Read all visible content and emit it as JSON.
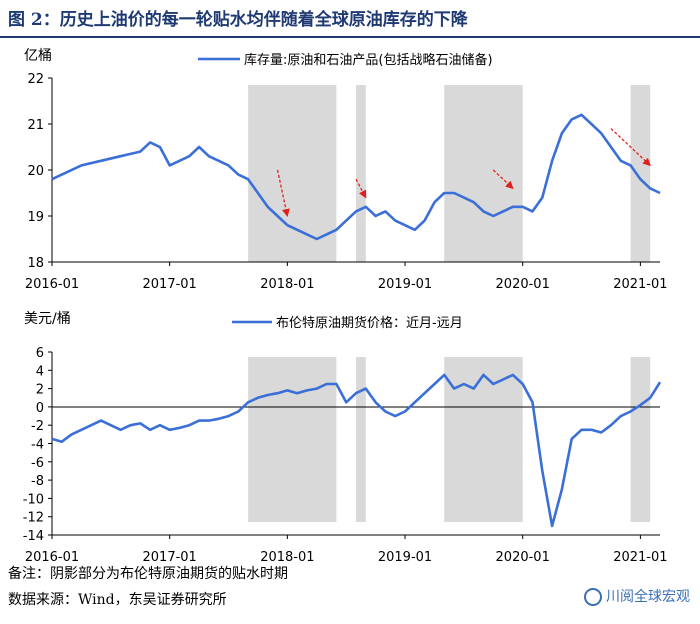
{
  "figure": {
    "title": "图 2：历史上油价的每一轮贴水均伴随着全球原油库存的下降",
    "note": "备注：阴影部分为布伦特原油期货的贴水时期",
    "source": "数据来源：Wind，东吴证券研究所",
    "watermark": "川阅全球宏观"
  },
  "colors": {
    "line": "#3a6fd8",
    "shade": "#d9d9d9",
    "arrow": "#e0201c",
    "title": "#1f3a73"
  },
  "chart_data": [
    {
      "type": "line",
      "ylabel": "亿桶",
      "ylim": [
        18,
        22
      ],
      "yticks": [
        "22",
        "21",
        "20",
        "19",
        "18"
      ],
      "xlim": [
        "2016-01",
        "2021-03"
      ],
      "xticks": [
        "2016-01",
        "2017-01",
        "2018-01",
        "2019-01",
        "2020-01",
        "2021-01"
      ],
      "legend": "库存量:原油和石油产品(包括战略石油储备)",
      "shaded_periods": [
        [
          "2017-09",
          "2018-06"
        ],
        [
          "2018-08",
          "2018-09"
        ],
        [
          "2019-05",
          "2020-01"
        ],
        [
          "2020-12",
          "2021-02"
        ]
      ],
      "annotations": [
        {
          "type": "arrow",
          "from": [
            "2017-12",
            "20.0"
          ],
          "to": [
            "2018-01",
            "19.0"
          ]
        },
        {
          "type": "arrow",
          "from": [
            "2018-08",
            "19.8"
          ],
          "to": [
            "2018-09",
            "19.4"
          ]
        },
        {
          "type": "arrow",
          "from": [
            "2019-10",
            "20.0"
          ],
          "to": [
            "2019-12",
            "19.6"
          ]
        },
        {
          "type": "arrow",
          "from": [
            "2020-10",
            "20.9"
          ],
          "to": [
            "2021-02",
            "20.1"
          ]
        }
      ],
      "series": [
        {
          "points": [
            [
              "2016-01",
              19.8
            ],
            [
              "2016-02",
              19.9
            ],
            [
              "2016-04",
              20.1
            ],
            [
              "2016-06",
              20.2
            ],
            [
              "2016-08",
              20.3
            ],
            [
              "2016-10",
              20.4
            ],
            [
              "2016-11",
              20.6
            ],
            [
              "2016-12",
              20.5
            ],
            [
              "2017-01",
              20.1
            ],
            [
              "2017-02",
              20.2
            ],
            [
              "2017-03",
              20.3
            ],
            [
              "2017-04",
              20.5
            ],
            [
              "2017-05",
              20.3
            ],
            [
              "2017-06",
              20.2
            ],
            [
              "2017-07",
              20.1
            ],
            [
              "2017-08",
              19.9
            ],
            [
              "2017-09",
              19.8
            ],
            [
              "2017-10",
              19.5
            ],
            [
              "2017-11",
              19.2
            ],
            [
              "2017-12",
              19.0
            ],
            [
              "2018-01",
              18.8
            ],
            [
              "2018-02",
              18.7
            ],
            [
              "2018-03",
              18.6
            ],
            [
              "2018-04",
              18.5
            ],
            [
              "2018-05",
              18.6
            ],
            [
              "2018-06",
              18.7
            ],
            [
              "2018-07",
              18.9
            ],
            [
              "2018-08",
              19.1
            ],
            [
              "2018-09",
              19.2
            ],
            [
              "2018-10",
              19.0
            ],
            [
              "2018-11",
              19.1
            ],
            [
              "2018-12",
              18.9
            ],
            [
              "2019-01",
              18.8
            ],
            [
              "2019-02",
              18.7
            ],
            [
              "2019-03",
              18.9
            ],
            [
              "2019-04",
              19.3
            ],
            [
              "2019-05",
              19.5
            ],
            [
              "2019-06",
              19.5
            ],
            [
              "2019-07",
              19.4
            ],
            [
              "2019-08",
              19.3
            ],
            [
              "2019-09",
              19.1
            ],
            [
              "2019-10",
              19.0
            ],
            [
              "2019-11",
              19.1
            ],
            [
              "2019-12",
              19.2
            ],
            [
              "2020-01",
              19.2
            ],
            [
              "2020-02",
              19.1
            ],
            [
              "2020-03",
              19.4
            ],
            [
              "2020-04",
              20.2
            ],
            [
              "2020-05",
              20.8
            ],
            [
              "2020-06",
              21.1
            ],
            [
              "2020-07",
              21.2
            ],
            [
              "2020-08",
              21.0
            ],
            [
              "2020-09",
              20.8
            ],
            [
              "2020-10",
              20.5
            ],
            [
              "2020-11",
              20.2
            ],
            [
              "2020-12",
              20.1
            ],
            [
              "2021-01",
              19.8
            ],
            [
              "2021-02",
              19.6
            ],
            [
              "2021-03",
              19.5
            ]
          ]
        }
      ]
    },
    {
      "type": "line",
      "ylabel": "美元/桶",
      "ylim": [
        -14,
        6
      ],
      "yticks": [
        "6",
        "4",
        "2",
        "0",
        "-2",
        "-4",
        "-6",
        "-8",
        "-10",
        "-12",
        "-14"
      ],
      "xlim": [
        "2016-01",
        "2021-03"
      ],
      "xticks": [
        "2016-01",
        "2017-01",
        "2018-01",
        "2019-01",
        "2020-01",
        "2021-01"
      ],
      "legend": "布伦特原油期货价格：近月-远月",
      "shaded_periods": [
        [
          "2017-09",
          "2018-06"
        ],
        [
          "2018-08",
          "2018-09"
        ],
        [
          "2019-05",
          "2020-01"
        ],
        [
          "2020-12",
          "2021-02"
        ]
      ],
      "series": [
        {
          "points": [
            [
              "2016-01",
              -3.5
            ],
            [
              "2016-02",
              -3.8
            ],
            [
              "2016-03",
              -3.0
            ],
            [
              "2016-04",
              -2.5
            ],
            [
              "2016-05",
              -2.0
            ],
            [
              "2016-06",
              -1.5
            ],
            [
              "2016-07",
              -2.0
            ],
            [
              "2016-08",
              -2.5
            ],
            [
              "2016-09",
              -2.0
            ],
            [
              "2016-10",
              -1.8
            ],
            [
              "2016-11",
              -2.5
            ],
            [
              "2016-12",
              -2.0
            ],
            [
              "2017-01",
              -2.5
            ],
            [
              "2017-02",
              -2.3
            ],
            [
              "2017-03",
              -2.0
            ],
            [
              "2017-04",
              -1.5
            ],
            [
              "2017-05",
              -1.5
            ],
            [
              "2017-06",
              -1.3
            ],
            [
              "2017-07",
              -1.0
            ],
            [
              "2017-08",
              -0.5
            ],
            [
              "2017-09",
              0.5
            ],
            [
              "2017-10",
              1.0
            ],
            [
              "2017-11",
              1.3
            ],
            [
              "2017-12",
              1.5
            ],
            [
              "2018-01",
              1.8
            ],
            [
              "2018-02",
              1.5
            ],
            [
              "2018-03",
              1.8
            ],
            [
              "2018-04",
              2.0
            ],
            [
              "2018-05",
              2.5
            ],
            [
              "2018-06",
              2.5
            ],
            [
              "2018-07",
              0.5
            ],
            [
              "2018-08",
              1.5
            ],
            [
              "2018-09",
              2.0
            ],
            [
              "2018-10",
              0.5
            ],
            [
              "2018-11",
              -0.5
            ],
            [
              "2018-12",
              -1.0
            ],
            [
              "2019-01",
              -0.5
            ],
            [
              "2019-02",
              0.5
            ],
            [
              "2019-03",
              1.5
            ],
            [
              "2019-04",
              2.5
            ],
            [
              "2019-05",
              3.5
            ],
            [
              "2019-06",
              2.0
            ],
            [
              "2019-07",
              2.5
            ],
            [
              "2019-08",
              2.0
            ],
            [
              "2019-09",
              3.5
            ],
            [
              "2019-10",
              2.5
            ],
            [
              "2019-11",
              3.0
            ],
            [
              "2019-12",
              3.5
            ],
            [
              "2020-01",
              2.5
            ],
            [
              "2020-02",
              0.5
            ],
            [
              "2020-03",
              -7.0
            ],
            [
              "2020-04",
              -13.0
            ],
            [
              "2020-05",
              -9.0
            ],
            [
              "2020-06",
              -3.5
            ],
            [
              "2020-07",
              -2.5
            ],
            [
              "2020-08",
              -2.5
            ],
            [
              "2020-09",
              -2.8
            ],
            [
              "2020-10",
              -2.0
            ],
            [
              "2020-11",
              -1.0
            ],
            [
              "2020-12",
              -0.5
            ],
            [
              "2021-01",
              0.2
            ],
            [
              "2021-02",
              1.0
            ],
            [
              "2021-03",
              2.7
            ]
          ]
        }
      ]
    }
  ]
}
